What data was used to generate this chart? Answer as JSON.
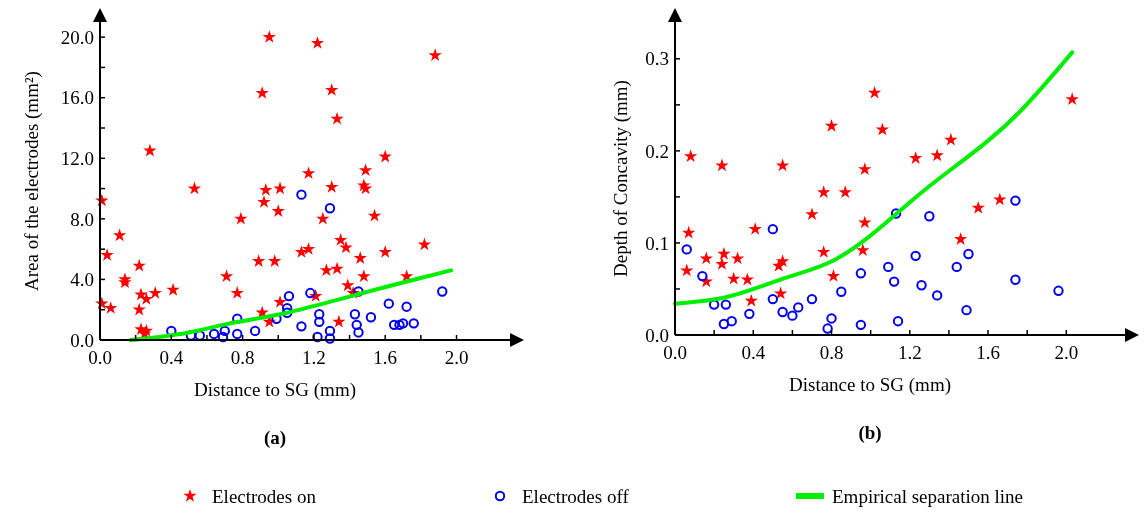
{
  "chart_data": [
    {
      "type": "scatter",
      "title": "(a)",
      "xlabel": "Distance to SG (mm)",
      "ylabel": "Area of the electrodes (mm²)",
      "legend": "bottom",
      "xlim": [
        0,
        2.3
      ],
      "ylim": [
        0,
        21
      ],
      "xticks": [
        {
          "value": 0,
          "label": "0.0"
        },
        {
          "value": 0.2,
          "label": null
        },
        {
          "value": 0.4,
          "label": "0.4"
        },
        {
          "value": 0.6,
          "label": null
        },
        {
          "value": 0.8,
          "label": "0.8"
        },
        {
          "value": 1.0,
          "label": null
        },
        {
          "value": 1.2,
          "label": "1.2"
        },
        {
          "value": 1.4,
          "label": null
        },
        {
          "value": 1.6,
          "label": "1.6"
        },
        {
          "value": 1.8,
          "label": null
        },
        {
          "value": 2.0,
          "label": "2.0"
        }
      ],
      "yticks": [
        {
          "value": 0,
          "label": "0.0"
        },
        {
          "value": 2,
          "label": null
        },
        {
          "value": 4,
          "label": "4.0"
        },
        {
          "value": 6,
          "label": null
        },
        {
          "value": 8,
          "label": "8.0"
        },
        {
          "value": 10,
          "label": null
        },
        {
          "value": 12,
          "label": "12.0"
        },
        {
          "value": 14,
          "label": null
        },
        {
          "value": 16,
          "label": "16.0"
        },
        {
          "value": 18,
          "label": null
        },
        {
          "value": 20,
          "label": "20.0"
        }
      ],
      "series": [
        {
          "name": "Electrodes on",
          "marker": "star",
          "color": "#ff0000",
          "x": [
            0.01,
            0.04,
            0.11,
            0.01,
            0.06,
            0.14,
            0.14,
            0.22,
            0.23,
            0.22,
            0.26,
            0.31,
            0.23,
            0.26,
            0.25,
            0.28,
            0.41,
            0.53,
            0.71,
            0.77,
            0.79,
            0.95,
            1.22,
            1.88,
            0.91,
            1.3,
            1.33,
            1.6,
            1.17,
            1.49,
            1.49,
            1.48,
            0.93,
            1.01,
            1.3,
            0.92,
            1.0,
            0.89,
            0.98,
            1.13,
            1.17,
            1.25,
            1.54,
            1.35,
            1.38,
            1.6,
            1.82,
            1.46,
            1.27,
            1.33,
            1.48,
            1.72,
            1.39,
            1.42,
            1.21,
            1.01,
            0.91,
            0.95,
            1.34
          ],
          "values": [
            9.2,
            5.6,
            6.9,
            2.4,
            2.1,
            3.8,
            4.0,
            4.9,
            3.0,
            2.0,
            2.7,
            3.1,
            0.7,
            0.6,
            0.4,
            12.5,
            3.3,
            10.0,
            4.2,
            3.1,
            8.0,
            20.0,
            19.6,
            18.8,
            16.3,
            16.5,
            14.6,
            12.1,
            11.0,
            11.2,
            10.0,
            10.2,
            9.9,
            10.0,
            10.1,
            9.1,
            8.5,
            5.2,
            5.2,
            5.8,
            6.0,
            8.0,
            8.2,
            6.6,
            6.1,
            5.8,
            6.3,
            5.4,
            4.6,
            4.7,
            4.2,
            4.2,
            3.6,
            3.1,
            2.9,
            2.5,
            1.8,
            1.2,
            1.2
          ]
        },
        {
          "name": "Electrodes off",
          "marker": "circle",
          "color": "#0000ee",
          "x": [
            0.4,
            0.51,
            0.56,
            0.64,
            0.7,
            0.69,
            0.77,
            0.77,
            0.87,
            0.99,
            1.05,
            1.05,
            1.06,
            1.13,
            1.18,
            1.13,
            1.23,
            1.23,
            1.22,
            1.29,
            1.29,
            1.29,
            1.43,
            1.44,
            1.45,
            1.45,
            1.52,
            1.62,
            1.65,
            1.68,
            1.7,
            1.72,
            1.76,
            1.92
          ],
          "values": [
            0.6,
            0.3,
            0.3,
            0.4,
            0.6,
            0.2,
            0.4,
            1.4,
            0.6,
            1.4,
            2.1,
            1.8,
            2.9,
            9.6,
            3.1,
            0.9,
            1.7,
            1.2,
            0.2,
            8.7,
            0.6,
            0.1,
            1.7,
            1.0,
            0.5,
            3.2,
            1.5,
            2.4,
            1.0,
            1.0,
            1.1,
            2.2,
            1.1,
            3.2
          ]
        },
        {
          "name": "Empirical separation line",
          "type": "line",
          "marker": "none",
          "color": "#00ee00",
          "x": [
            0.17,
            0.5,
            0.69,
            1.05,
            1.41,
            1.7,
            1.97
          ],
          "values": [
            0,
            0.5,
            1.0,
            1.8,
            2.9,
            3.8,
            4.6
          ]
        }
      ]
    },
    {
      "type": "scatter",
      "title": "(b)",
      "xlabel": "Distance to SG (mm)",
      "ylabel": "Depth of Concavity (mm)",
      "xlim": [
        0,
        2.3
      ],
      "ylim": [
        0,
        0.34
      ],
      "xticks": [
        {
          "value": 0,
          "label": "0.0"
        },
        {
          "value": 0.2,
          "label": null
        },
        {
          "value": 0.4,
          "label": "0.4"
        },
        {
          "value": 0.6,
          "label": null
        },
        {
          "value": 0.8,
          "label": "0.8"
        },
        {
          "value": 1.0,
          "label": null
        },
        {
          "value": 1.2,
          "label": "1.2"
        },
        {
          "value": 1.4,
          "label": null
        },
        {
          "value": 1.6,
          "label": "1.6"
        },
        {
          "value": 1.8,
          "label": null
        },
        {
          "value": 2.0,
          "label": "2.0"
        }
      ],
      "yticks": [
        {
          "value": 0,
          "label": "0.0"
        },
        {
          "value": 0.05,
          "label": null
        },
        {
          "value": 0.1,
          "label": "0.1"
        },
        {
          "value": 0.15,
          "label": null
        },
        {
          "value": 0.2,
          "label": "0.2"
        },
        {
          "value": 0.25,
          "label": null
        },
        {
          "value": 0.3,
          "label": "0.3"
        }
      ],
      "series": [
        {
          "marker": "star",
          "color": "#ff0000",
          "x": [
            0.08,
            0.07,
            0.06,
            0.16,
            0.16,
            0.24,
            0.25,
            0.24,
            0.3,
            0.32,
            0.37,
            0.41,
            0.39,
            0.55,
            0.55,
            0.53,
            0.54,
            0.7,
            0.76,
            0.76,
            0.8,
            0.81,
            0.87,
            1.02,
            1.06,
            0.97,
            1.23,
            1.34,
            1.41,
            0.97,
            0.96,
            1.55,
            1.66,
            1.46,
            2.03
          ],
          "values": [
            0.194,
            0.111,
            0.07,
            0.083,
            0.058,
            0.184,
            0.088,
            0.077,
            0.061,
            0.083,
            0.06,
            0.115,
            0.037,
            0.184,
            0.08,
            0.075,
            0.045,
            0.131,
            0.155,
            0.09,
            0.227,
            0.064,
            0.155,
            0.263,
            0.223,
            0.18,
            0.192,
            0.195,
            0.212,
            0.122,
            0.092,
            0.138,
            0.147,
            0.104,
            0.256
          ]
        },
        {
          "marker": "circle",
          "color": "#0000ee",
          "x": [
            0.06,
            0.14,
            0.2,
            0.26,
            0.25,
            0.29,
            0.38,
            0.5,
            0.5,
            0.55,
            0.6,
            0.63,
            0.7,
            0.78,
            0.8,
            0.85,
            0.95,
            0.95,
            1.09,
            1.12,
            1.13,
            1.14,
            1.23,
            1.26,
            1.3,
            1.34,
            1.44,
            1.5,
            1.49,
            1.74,
            1.74,
            1.96
          ],
          "values": [
            0.093,
            0.064,
            0.033,
            0.033,
            0.012,
            0.015,
            0.023,
            0.115,
            0.039,
            0.025,
            0.021,
            0.03,
            0.039,
            0.007,
            0.018,
            0.047,
            0.067,
            0.011,
            0.074,
            0.058,
            0.132,
            0.015,
            0.086,
            0.054,
            0.129,
            0.043,
            0.074,
            0.088,
            0.027,
            0.146,
            0.06,
            0.048
          ]
        },
        {
          "type": "line",
          "marker": "none",
          "color": "#00ee00",
          "x": [
            0,
            0.26,
            0.55,
            0.81,
            1.29,
            1.76,
            2.03
          ],
          "values": [
            0.034,
            0.041,
            0.061,
            0.081,
            0.16,
            0.242,
            0.307
          ]
        }
      ]
    }
  ]
}
